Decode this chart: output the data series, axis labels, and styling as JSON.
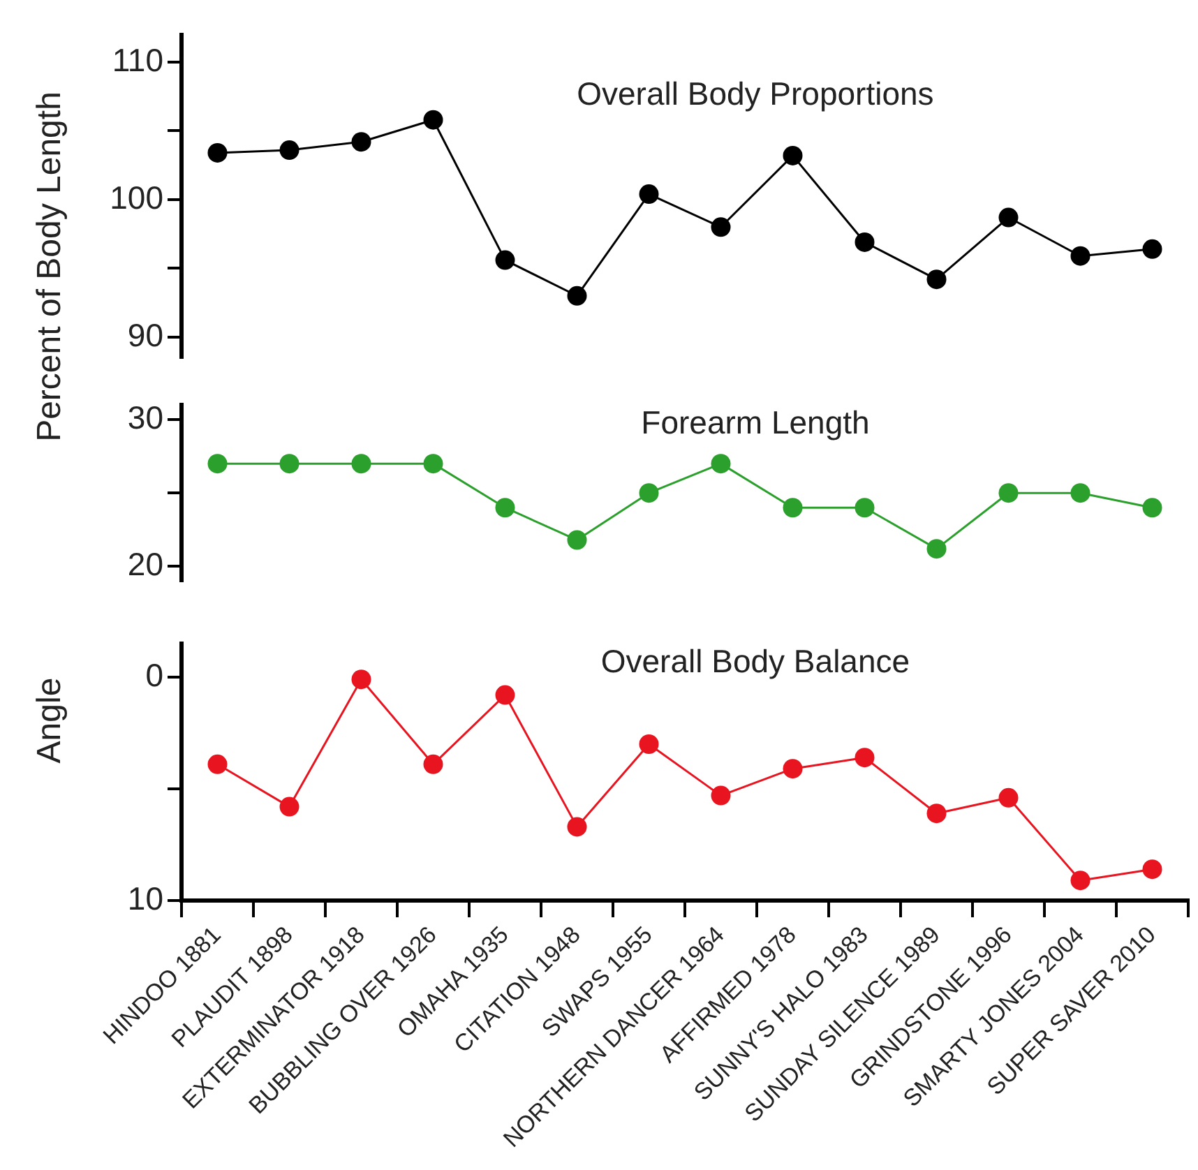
{
  "chart_data": [
    {
      "type": "line",
      "title": "Overall Body Proportions",
      "ylabel": "Percent of Body Length",
      "categories": [
        null,
        null,
        null,
        null,
        null,
        null,
        null,
        null,
        null,
        null,
        null,
        null,
        null,
        null
      ],
      "series": [
        {
          "color": "#000000",
          "values": [
            103.4,
            103.6,
            104.2,
            105.8,
            95.6,
            93.0,
            100.4,
            98.0,
            103.2,
            96.9,
            94.2,
            98.7,
            95.9,
            96.4
          ]
        }
      ],
      "ylim": [
        88.5,
        112
      ],
      "yticks": [
        90,
        {
          "value": 95,
          "label": null
        },
        100,
        {
          "value": 105,
          "label": null
        },
        110
      ],
      "tick_labels": "y",
      "grid": false,
      "legend": false,
      "marker": "circle",
      "line_style": "solid"
    },
    {
      "type": "line",
      "title": "Forearm Length",
      "categories": [
        null,
        null,
        null,
        null,
        null,
        null,
        null,
        null,
        null,
        null,
        null,
        null,
        null,
        null
      ],
      "series": [
        {
          "color": "#2ca02c",
          "values": [
            27,
            27,
            27,
            27,
            24,
            21.8,
            25,
            27,
            24,
            24,
            21.2,
            25,
            25,
            24
          ]
        }
      ],
      "ylim": [
        19,
        31
      ],
      "yticks": [
        20,
        {
          "value": 25,
          "label": null
        },
        30
      ],
      "tick_labels": "y",
      "grid": false,
      "legend": false,
      "marker": "circle",
      "line_style": "solid"
    },
    {
      "type": "line",
      "title": "Overall Body Balance",
      "ylabel": "Angle",
      "categories": [
        "HINDOO 1881",
        "PLAUDIT 1898",
        "EXTERMINATOR 1918",
        "BUBBLING OVER 1926",
        "OMAHA 1935",
        "CITATION 1948",
        "SWAPS 1955",
        "NORTHERN DANCER 1964",
        "AFFIRMED 1978",
        "SUNNY'S HALO 1983",
        "SUNDAY SILENCE 1989",
        "GRINDSTONE 1996",
        "SMARTY JONES 2004",
        "SUPER SAVER 2010"
      ],
      "series": [
        {
          "color": "#e8141f",
          "values": [
            3.9,
            5.8,
            0.1,
            3.9,
            0.8,
            6.7,
            3.0,
            5.3,
            4.1,
            3.6,
            6.1,
            5.4,
            9.1,
            8.6
          ]
        }
      ],
      "ylim": [
        10,
        -1.5
      ],
      "yticks": [
        0,
        {
          "value": 5,
          "label": null
        },
        10
      ],
      "grid": false,
      "legend": false,
      "marker": "circle",
      "line_style": "solid"
    }
  ]
}
